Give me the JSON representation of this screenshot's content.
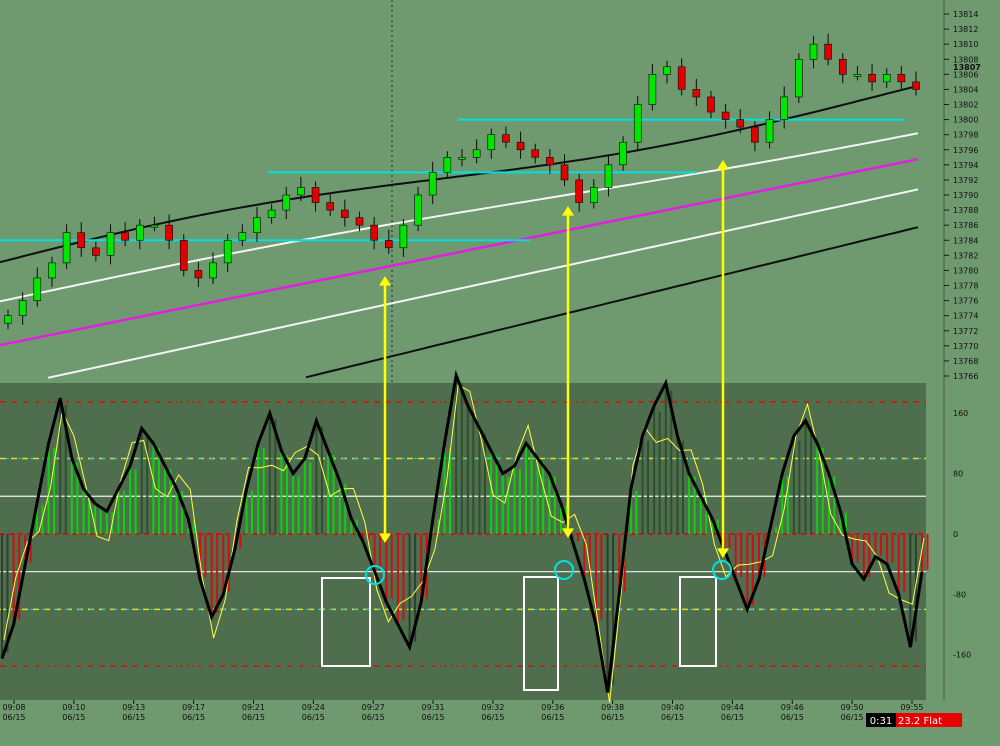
{
  "colors": {
    "background": "#6f9a6f",
    "oscillator_panel": "#4e6e4e",
    "candle_up": "#00e600",
    "candle_down": "#e00000",
    "cyan_level": "#00e0e0",
    "ma_black": "#101010",
    "ma_white": "#f4f4f4",
    "ma_magenta": "#e020e0",
    "signal_arrow": "#ffff00",
    "cci_line": "#000000",
    "turbo_line": "#ffff40",
    "status_red": "#e80000"
  },
  "chart_data": [
    {
      "type": "candlestick",
      "y_axis_ticks": [
        "13814",
        "13812",
        "13810",
        "13808",
        "13806",
        "13804",
        "13802",
        "13800",
        "13798",
        "13796",
        "13794",
        "13792",
        "13790",
        "13788",
        "13786",
        "13784",
        "13782",
        "13780",
        "13778",
        "13776",
        "13774",
        "13772",
        "13770",
        "13768",
        "13766"
      ],
      "last_price_label": "13807",
      "ylim": [
        13765,
        13815
      ],
      "horizontal_levels": [
        13784,
        13793,
        13800
      ],
      "approx_close_path": [
        13774,
        13776,
        13779,
        13781,
        13785,
        13783,
        13782,
        13785,
        13784,
        13786,
        13786,
        13784,
        13780,
        13779,
        13781,
        13784,
        13785,
        13787,
        13788,
        13790,
        13791,
        13789,
        13788,
        13787,
        13786,
        13784,
        13783,
        13786,
        13790,
        13793,
        13795,
        13795,
        13796,
        13798,
        13797,
        13796,
        13795,
        13794,
        13792,
        13789,
        13791,
        13794,
        13797,
        13802,
        13806,
        13807,
        13804,
        13803,
        13801,
        13800,
        13799,
        13797,
        13800,
        13803,
        13808,
        13810,
        13808,
        13806,
        13806,
        13805,
        13806,
        13805,
        13804
      ]
    },
    {
      "type": "line",
      "name_hint": "cci oscillator",
      "y_axis_ticks": [
        "160",
        "80",
        "0",
        "-80",
        "-160"
      ],
      "ylim": [
        -220,
        200
      ],
      "dashed_levels": [
        175,
        100,
        -100,
        -175
      ],
      "solid_levels": [
        50,
        0,
        -50
      ],
      "cci": [
        -165,
        -120,
        -40,
        40,
        120,
        180,
        100,
        60,
        40,
        30,
        60,
        90,
        140,
        120,
        90,
        60,
        20,
        -60,
        -110,
        -80,
        -20,
        60,
        120,
        160,
        110,
        80,
        100,
        150,
        110,
        70,
        20,
        -10,
        -50,
        -90,
        -120,
        -150,
        -90,
        20,
        120,
        210,
        170,
        140,
        110,
        80,
        90,
        120,
        100,
        80,
        40,
        -10,
        -60,
        -120,
        -210,
        -80,
        60,
        130,
        170,
        200,
        130,
        80,
        50,
        20,
        -20,
        -60,
        -100,
        -60,
        10,
        80,
        130,
        150,
        120,
        80,
        30,
        -40,
        -60,
        -30,
        -40,
        -80,
        -150,
        -50
      ]
    }
  ],
  "x_axis": {
    "times": [
      "09:08",
      "09:10",
      "09:13",
      "09:17",
      "09:21",
      "09:24",
      "09:27",
      "09:31",
      "09:32",
      "09:36",
      "09:38",
      "09:40",
      "09:44",
      "09:46",
      "09:50",
      "09:55"
    ],
    "date": "06/15"
  },
  "status": {
    "timer": "0:31",
    "position": "23.2 Flat"
  }
}
